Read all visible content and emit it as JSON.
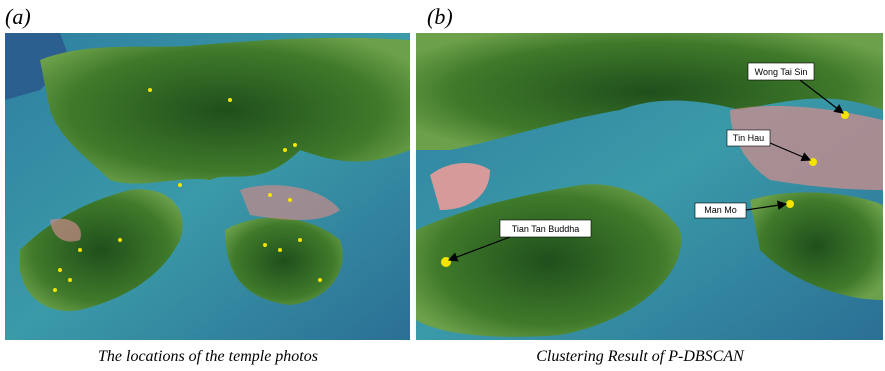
{
  "panels": [
    {
      "tag": "(a)",
      "caption": "The locations of the temple photos"
    },
    {
      "tag": "(b)",
      "caption": "Clustering Result of P-DBSCAN",
      "labels": [
        "Wong Tai Sin",
        "Tin Hau",
        "Man Mo",
        "Tian Tan Buddha"
      ]
    }
  ]
}
